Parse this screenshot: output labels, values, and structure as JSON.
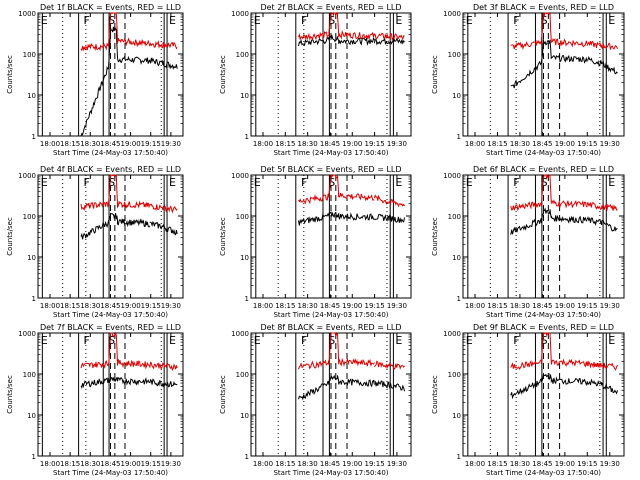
{
  "colors": {
    "events": "#000000",
    "lld": "#dd0000",
    "axis": "#000000"
  },
  "chart_data": [
    {
      "type": "line",
      "title": "Det 1f BLACK = Events, RED = LLD",
      "xlabel": "Start Time (24-May-03 17:50:40)",
      "ylabel": "Counts/sec",
      "yscale": "log",
      "ylim": [
        1,
        1000
      ],
      "xticks": [
        "18:00",
        "18:15",
        "18:30",
        "18:45",
        "19:00",
        "19:15",
        "19:30"
      ],
      "markers": [
        "E",
        "F",
        "S",
        "E"
      ],
      "series": [
        {
          "name": "Events",
          "color": "#000000",
          "segments": [
            [
              [
                18.4,
                0
              ],
              [
                30.2,
                50
              ],
              [
                31,
                400
              ],
              [
                33.5,
                400
              ],
              [
                34,
                75
              ],
              [
                47.8,
                70
              ]
            ],
            [
              [
                47.8,
                70
              ],
              [
                53.4,
                60
              ],
              [
                59.5,
                50
              ]
            ]
          ]
        },
        {
          "name": "LLD",
          "color": "#dd0000",
          "segments": [
            [
              [
                18.4,
                150
              ],
              [
                30.2,
                155
              ],
              [
                31,
                1000
              ],
              [
                33.5,
                1000
              ],
              [
                34,
                210
              ],
              [
                47.8,
                180
              ]
            ],
            [
              [
                47.8,
                180
              ],
              [
                53.4,
                170
              ],
              [
                59.5,
                160
              ]
            ]
          ]
        }
      ]
    },
    {
      "type": "line",
      "title": "Det 2f BLACK = Events, RED = LLD",
      "xlabel": "Start Time (24-May-03 17:50:40)",
      "ylabel": "Counts/sec",
      "yscale": "log",
      "ylim": [
        1,
        1000
      ],
      "xticks": [
        "18:00",
        "18:15",
        "18:30",
        "18:45",
        "19:00",
        "19:15",
        "19:30"
      ],
      "markers": [
        "E",
        "F",
        "S",
        "E"
      ],
      "series": [
        {
          "name": "Events",
          "color": "#000000",
          "segments": [
            [
              [
                18.4,
                180
              ],
              [
                30.2,
                220
              ],
              [
                31,
                260
              ],
              [
                33.5,
                230
              ],
              [
                34,
                210
              ],
              [
                47.8,
                210
              ]
            ],
            [
              [
                47.8,
                210
              ],
              [
                53.4,
                210
              ],
              [
                59.5,
                200
              ]
            ]
          ]
        },
        {
          "name": "LLD",
          "color": "#dd0000",
          "segments": [
            [
              [
                18.4,
                260
              ],
              [
                30.2,
                300
              ],
              [
                31,
                1000
              ],
              [
                33.5,
                1000
              ],
              [
                34,
                300
              ],
              [
                47.8,
                280
              ]
            ],
            [
              [
                47.8,
                280
              ],
              [
                53.4,
                270
              ],
              [
                59.5,
                250
              ]
            ]
          ]
        }
      ]
    },
    {
      "type": "line",
      "title": "Det 3f BLACK = Events, RED = LLD",
      "xlabel": "Start Time (24-May-03 17:50:40)",
      "ylabel": "Counts/sec",
      "yscale": "log",
      "ylim": [
        1,
        1000
      ],
      "xticks": [
        "18:00",
        "18:15",
        "18:30",
        "18:45",
        "19:00",
        "19:15",
        "19:30"
      ],
      "markers": [
        "E",
        "F",
        "S",
        "E"
      ],
      "series": [
        {
          "name": "Events",
          "color": "#000000",
          "segments": [
            [
              [
                18.4,
                15
              ],
              [
                30.2,
                60
              ],
              [
                31,
                200
              ],
              [
                33.5,
                200
              ],
              [
                34,
                80
              ],
              [
                47.8,
                75
              ]
            ],
            [
              [
                47.8,
                75
              ],
              [
                53.4,
                60
              ],
              [
                59.5,
                35
              ]
            ]
          ]
        },
        {
          "name": "LLD",
          "color": "#dd0000",
          "segments": [
            [
              [
                18.4,
                150
              ],
              [
                30.2,
                190
              ],
              [
                31,
                1000
              ],
              [
                33.5,
                1000
              ],
              [
                34,
                200
              ],
              [
                47.8,
                180
              ]
            ],
            [
              [
                47.8,
                180
              ],
              [
                53.4,
                160
              ],
              [
                59.5,
                150
              ]
            ]
          ]
        }
      ]
    },
    {
      "type": "line",
      "title": "Det 4f BLACK = Events, RED = LLD",
      "xlabel": "Start Time (24-May-03 17:50:40)",
      "ylabel": "Counts/sec",
      "yscale": "log",
      "ylim": [
        1,
        1000
      ],
      "xticks": [
        "18:00",
        "18:15",
        "18:30",
        "18:45",
        "19:00",
        "19:15",
        "19:30"
      ],
      "markers": [
        "E",
        "F",
        "S",
        "E"
      ],
      "series": [
        {
          "name": "Events",
          "color": "#000000",
          "segments": [
            [
              [
                18.4,
                30
              ],
              [
                30.2,
                70
              ],
              [
                31,
                100
              ],
              [
                33.5,
                100
              ],
              [
                34,
                75
              ],
              [
                47.8,
                65
              ]
            ],
            [
              [
                47.8,
                65
              ],
              [
                53.4,
                55
              ],
              [
                59.5,
                40
              ]
            ]
          ]
        },
        {
          "name": "LLD",
          "color": "#dd0000",
          "segments": [
            [
              [
                18.4,
                170
              ],
              [
                30.2,
                200
              ],
              [
                31,
                1000
              ],
              [
                33.5,
                1000
              ],
              [
                34,
                200
              ],
              [
                47.8,
                180
              ]
            ],
            [
              [
                47.8,
                180
              ],
              [
                53.4,
                160
              ],
              [
                59.5,
                140
              ]
            ]
          ]
        }
      ]
    },
    {
      "type": "line",
      "title": "Det 5f BLACK = Events, RED = LLD",
      "xlabel": "Start Time (24-May-03 17:50:40)",
      "ylabel": "Counts/sec",
      "yscale": "log",
      "ylim": [
        1,
        1000
      ],
      "xticks": [
        "18:00",
        "18:15",
        "18:30",
        "18:45",
        "19:00",
        "19:15",
        "19:30"
      ],
      "markers": [
        "E",
        "F",
        "S",
        "E"
      ],
      "series": [
        {
          "name": "Events",
          "color": "#000000",
          "segments": [
            [
              [
                18.4,
                70
              ],
              [
                30.2,
                100
              ],
              [
                31,
                110
              ],
              [
                33.5,
                110
              ],
              [
                34,
                100
              ],
              [
                47.8,
                95
              ]
            ],
            [
              [
                47.8,
                95
              ],
              [
                53.4,
                90
              ],
              [
                59.5,
                80
              ]
            ]
          ]
        },
        {
          "name": "LLD",
          "color": "#dd0000",
          "segments": [
            [
              [
                18.4,
                230
              ],
              [
                30.2,
                300
              ],
              [
                31,
                1000
              ],
              [
                33.5,
                1000
              ],
              [
                34,
                320
              ],
              [
                47.8,
                280
              ]
            ],
            [
              [
                47.8,
                280
              ],
              [
                53.4,
                220
              ],
              [
                59.5,
                190
              ]
            ]
          ]
        }
      ]
    },
    {
      "type": "line",
      "title": "Det 6f BLACK = Events, RED = LLD",
      "xlabel": "Start Time (24-May-03 17:50:40)",
      "ylabel": "Counts/sec",
      "yscale": "log",
      "ylim": [
        1,
        1000
      ],
      "xticks": [
        "18:00",
        "18:15",
        "18:30",
        "18:45",
        "19:00",
        "19:15",
        "19:30"
      ],
      "markers": [
        "E",
        "F",
        "S",
        "E"
      ],
      "series": [
        {
          "name": "Events",
          "color": "#000000",
          "segments": [
            [
              [
                18.4,
                40
              ],
              [
                30.2,
                80
              ],
              [
                31,
                130
              ],
              [
                33.5,
                130
              ],
              [
                34,
                90
              ],
              [
                47.8,
                80
              ]
            ],
            [
              [
                47.8,
                80
              ],
              [
                53.4,
                70
              ],
              [
                59.5,
                45
              ]
            ]
          ]
        },
        {
          "name": "LLD",
          "color": "#dd0000",
          "segments": [
            [
              [
                18.4,
                160
              ],
              [
                30.2,
                200
              ],
              [
                31,
                1000
              ],
              [
                33.5,
                1000
              ],
              [
                34,
                210
              ],
              [
                47.8,
                190
              ]
            ],
            [
              [
                47.8,
                190
              ],
              [
                53.4,
                170
              ],
              [
                59.5,
                150
              ]
            ]
          ]
        }
      ]
    },
    {
      "type": "line",
      "title": "Det 7f BLACK = Events, RED = LLD",
      "xlabel": "Start Time (24-May-03 17:50:40)",
      "ylabel": "Counts/sec",
      "yscale": "log",
      "ylim": [
        1,
        1000
      ],
      "xticks": [
        "18:00",
        "18:15",
        "18:30",
        "18:45",
        "19:00",
        "19:15",
        "19:30"
      ],
      "markers": [
        "E",
        "F",
        "S",
        "E"
      ],
      "series": [
        {
          "name": "Events",
          "color": "#000000",
          "segments": [
            [
              [
                18.4,
                55
              ],
              [
                30.2,
                70
              ],
              [
                31,
                75
              ],
              [
                33.5,
                75
              ],
              [
                34,
                70
              ],
              [
                47.8,
                65
              ]
            ],
            [
              [
                47.8,
                65
              ],
              [
                53.4,
                60
              ],
              [
                59.5,
                55
              ]
            ]
          ]
        },
        {
          "name": "LLD",
          "color": "#dd0000",
          "segments": [
            [
              [
                18.4,
                160
              ],
              [
                30.2,
                180
              ],
              [
                31,
                1000
              ],
              [
                33.5,
                1000
              ],
              [
                34,
                190
              ],
              [
                47.8,
                170
              ]
            ],
            [
              [
                47.8,
                170
              ],
              [
                53.4,
                160
              ],
              [
                59.5,
                150
              ]
            ]
          ]
        }
      ]
    },
    {
      "type": "line",
      "title": "Det 8f BLACK = Events, RED = LLD",
      "xlabel": "Start Time (24-May-03 17:50:40)",
      "ylabel": "Counts/sec",
      "yscale": "log",
      "ylim": [
        1,
        1000
      ],
      "xticks": [
        "18:00",
        "18:15",
        "18:30",
        "18:45",
        "19:00",
        "19:15",
        "19:30"
      ],
      "markers": [
        "E",
        "F",
        "S",
        "E"
      ],
      "series": [
        {
          "name": "Events",
          "color": "#000000",
          "segments": [
            [
              [
                18.4,
                25
              ],
              [
                30.2,
                60
              ],
              [
                31,
                80
              ],
              [
                33.5,
                80
              ],
              [
                34,
                65
              ],
              [
                47.8,
                60
              ]
            ],
            [
              [
                47.8,
                60
              ],
              [
                53.4,
                55
              ],
              [
                59.5,
                45
              ]
            ]
          ]
        },
        {
          "name": "LLD",
          "color": "#dd0000",
          "segments": [
            [
              [
                18.4,
                150
              ],
              [
                30.2,
                190
              ],
              [
                31,
                1000
              ],
              [
                33.5,
                1000
              ],
              [
                34,
                200
              ],
              [
                47.8,
                180
              ]
            ],
            [
              [
                47.8,
                180
              ],
              [
                53.4,
                160
              ],
              [
                59.5,
                150
              ]
            ]
          ]
        }
      ]
    },
    {
      "type": "line",
      "title": "Det 9f BLACK = Events, RED = LLD",
      "xlabel": "Start Time (24-May-03 17:50:40)",
      "ylabel": "Counts/sec",
      "yscale": "log",
      "ylim": [
        1,
        1000
      ],
      "xticks": [
        "18:00",
        "18:15",
        "18:30",
        "18:45",
        "19:00",
        "19:15",
        "19:30"
      ],
      "markers": [
        "E",
        "F",
        "S",
        "E"
      ],
      "series": [
        {
          "name": "Events",
          "color": "#000000",
          "segments": [
            [
              [
                18.4,
                30
              ],
              [
                30.2,
                65
              ],
              [
                31,
                90
              ],
              [
                33.5,
                90
              ],
              [
                34,
                70
              ],
              [
                47.8,
                65
              ]
            ],
            [
              [
                47.8,
                65
              ],
              [
                53.4,
                55
              ],
              [
                59.5,
                35
              ]
            ]
          ]
        },
        {
          "name": "LLD",
          "color": "#dd0000",
          "segments": [
            [
              [
                18.4,
                150
              ],
              [
                30.2,
                190
              ],
              [
                31,
                1000
              ],
              [
                33.5,
                1000
              ],
              [
                34,
                200
              ],
              [
                47.8,
                180
              ]
            ],
            [
              [
                47.8,
                180
              ],
              [
                53.4,
                160
              ],
              [
                59.5,
                150
              ]
            ]
          ]
        }
      ]
    }
  ]
}
